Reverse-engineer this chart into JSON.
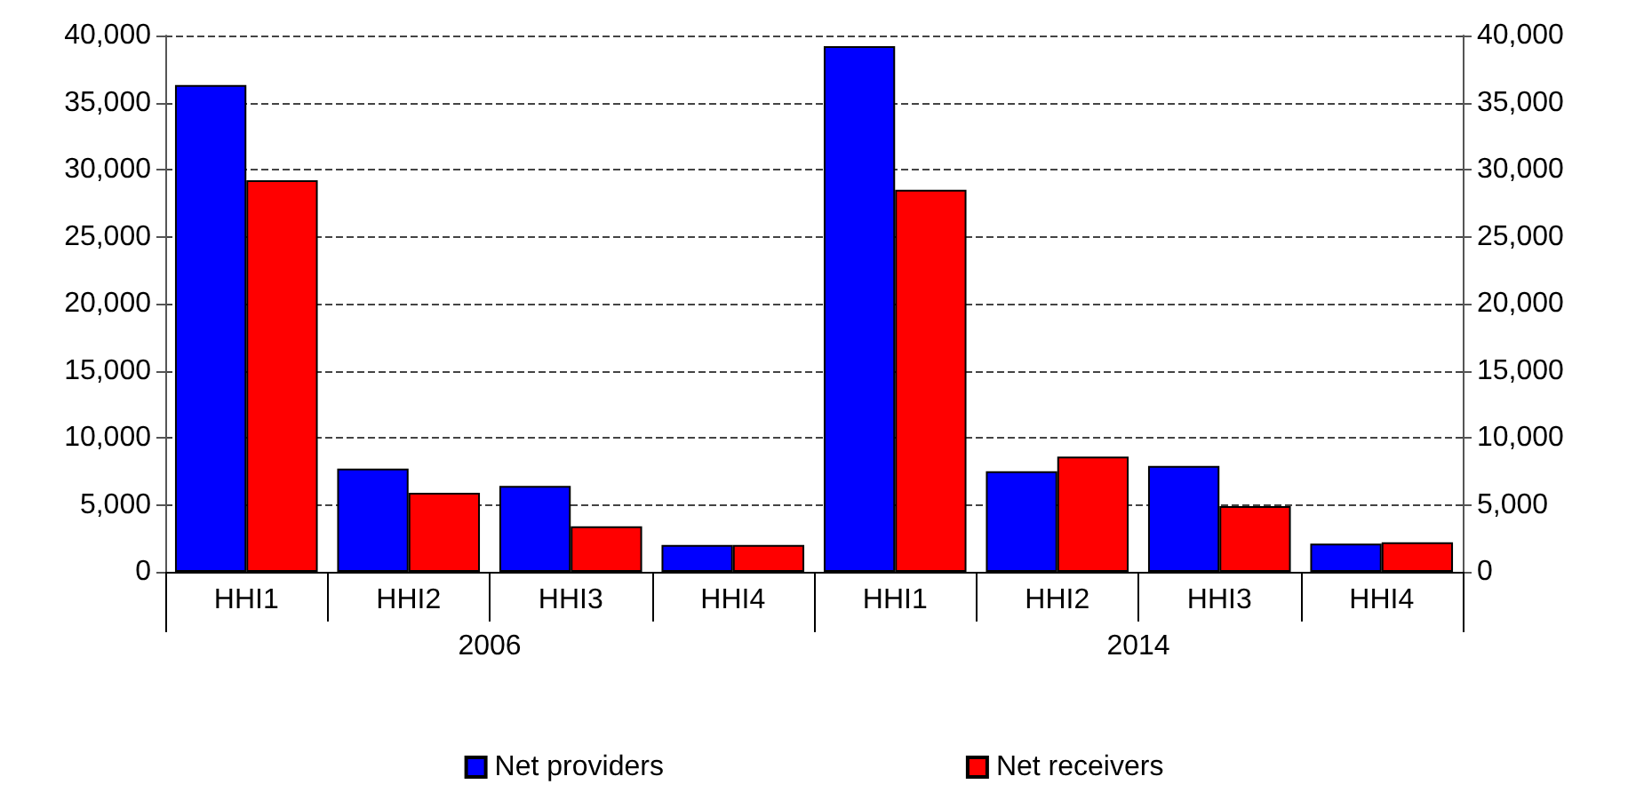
{
  "chart_data": {
    "type": "bar",
    "categories": [
      "HHI1",
      "HHI2",
      "HHI3",
      "HHI4",
      "HHI1",
      "HHI2",
      "HHI3",
      "HHI4"
    ],
    "series": [
      {
        "name": "Net providers",
        "color": "#0000ff",
        "values": [
          36300,
          7700,
          6400,
          2000,
          39200,
          7500,
          7900,
          2100
        ]
      },
      {
        "name": "Net receivers",
        "color": "#ff0000",
        "values": [
          29200,
          5900,
          3400,
          2000,
          28500,
          8600,
          4900,
          2200
        ]
      }
    ],
    "annotations": [
      "2006",
      "2014"
    ],
    "ylim": [
      0,
      40000
    ],
    "yticks": [
      0,
      {
        "value": 5000,
        "label": "5,000"
      },
      {
        "value": 10000,
        "label": "10,000"
      },
      {
        "value": 15000,
        "label": "15,000"
      },
      {
        "value": 20000,
        "label": "20,000"
      },
      {
        "value": 25000,
        "label": "25,000"
      },
      {
        "value": 30000,
        "label": "30,000"
      },
      {
        "value": 35000,
        "label": "35,000"
      },
      {
        "value": 40000,
        "label": "40,000"
      }
    ],
    "y2lim": [
      0,
      40000
    ],
    "y2ticks": [
      0,
      {
        "value": 5000,
        "label": "5,000"
      },
      {
        "value": 10000,
        "label": "10,000"
      },
      {
        "value": 15000,
        "label": "15,000"
      },
      {
        "value": 20000,
        "label": "20,000"
      },
      {
        "value": 25000,
        "label": "25,000"
      },
      {
        "value": 30000,
        "label": "30,000"
      },
      {
        "value": 35000,
        "label": "35,000"
      },
      {
        "value": 40000,
        "label": "40,000"
      }
    ],
    "grid": "y",
    "legend": "bottom"
  }
}
